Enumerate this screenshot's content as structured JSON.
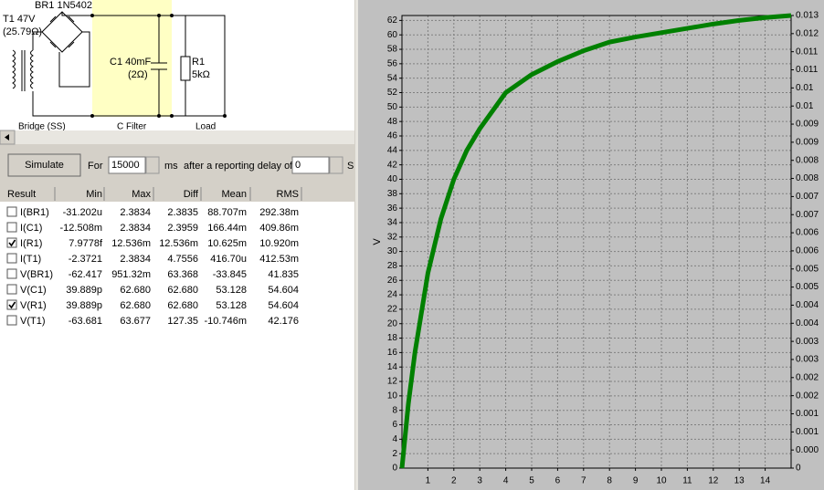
{
  "diagram": {
    "bridge": "BR1 1N5402",
    "transformer": "T1 47V",
    "transformer_res": "(25.79Ω)",
    "capacitor": "C1 40mF",
    "capacitor_res": "(2Ω)",
    "resistor": "R1",
    "resistor_value": "5kΩ",
    "section_labels": [
      "Bridge (SS)",
      "C Filter",
      "Load"
    ]
  },
  "controls": {
    "button": "Simulate",
    "for": "For",
    "duration": "15000",
    "duration_unit": "ms",
    "delay_text": "after a reporting delay of",
    "delay": "0",
    "delay_unit": "S"
  },
  "table": {
    "header": [
      "Result",
      "Min",
      "Max",
      "Diff",
      "Mean",
      "RMS"
    ],
    "rows": [
      {
        "checked": false,
        "cells": [
          "I(BR1)",
          "-31.202u",
          "2.3834",
          "2.3835",
          "88.707m",
          "292.38m"
        ]
      },
      {
        "checked": false,
        "cells": [
          "I(C1)",
          "-12.508m",
          "2.3834",
          "2.3959",
          "166.44m",
          "409.86m"
        ]
      },
      {
        "checked": true,
        "cells": [
          "I(R1)",
          "7.9778f",
          "12.536m",
          "12.536m",
          "10.625m",
          "10.920m"
        ]
      },
      {
        "checked": false,
        "cells": [
          "I(T1)",
          "-2.3721",
          "2.3834",
          "4.7556",
          "416.70u",
          "412.53m"
        ]
      },
      {
        "checked": false,
        "cells": [
          "V(BR1)",
          "-62.417",
          "951.32m",
          "63.368",
          "-33.845",
          "41.835"
        ]
      },
      {
        "checked": false,
        "cells": [
          "V(C1)",
          "39.889p",
          "62.680",
          "62.680",
          "53.128",
          "54.604"
        ]
      },
      {
        "checked": true,
        "cells": [
          "V(R1)",
          "39.889p",
          "62.680",
          "62.680",
          "53.128",
          "54.604"
        ]
      },
      {
        "checked": false,
        "cells": [
          "V(T1)",
          "-63.681",
          "63.677",
          "127.35",
          "-10.746m",
          "42.176"
        ]
      }
    ]
  },
  "chart_data": {
    "type": "line",
    "ylabel": "V",
    "x": [
      0,
      0.25,
      0.5,
      1,
      1.5,
      2,
      2.5,
      3,
      4,
      5,
      6,
      7,
      8,
      9,
      10,
      11,
      12,
      13,
      14,
      15
    ],
    "series": [
      {
        "color": "#008000",
        "values": [
          0,
          9,
          16,
          27,
          34.5,
          40,
          44,
          47,
          52,
          54.5,
          56.3,
          57.8,
          59,
          59.7,
          60.3,
          60.9,
          61.5,
          62,
          62.4,
          62.68
        ]
      }
    ],
    "xlim": [
      0,
      15
    ],
    "xticks": [
      1,
      2,
      3,
      4,
      5,
      6,
      7,
      8,
      9,
      10,
      11,
      12,
      13,
      14
    ],
    "ylim": [
      0,
      62.68
    ],
    "yticks": [
      0,
      2,
      4,
      6,
      8,
      10,
      12,
      14,
      16,
      18,
      20,
      22,
      24,
      26,
      28,
      30,
      32,
      34,
      36,
      38,
      40,
      42,
      44,
      46,
      48,
      50,
      52,
      54,
      56,
      58,
      60,
      62
    ],
    "y2lim": [
      0,
      0.0125
    ],
    "y2ticks": [
      0,
      {
        "value": 0.0005,
        "label": "0.000"
      },
      {
        "value": 0.001,
        "label": "0.001"
      },
      {
        "value": 0.0015,
        "label": "0.001"
      },
      {
        "value": 0.002,
        "label": "0.002"
      },
      {
        "value": 0.0025,
        "label": "0.002"
      },
      {
        "value": 0.003,
        "label": "0.003"
      },
      {
        "value": 0.0035,
        "label": "0.003"
      },
      {
        "value": 0.004,
        "label": "0.004"
      },
      {
        "value": 0.0045,
        "label": "0.004"
      },
      {
        "value": 0.005,
        "label": "0.005"
      },
      {
        "value": 0.0055,
        "label": "0.005"
      },
      {
        "value": 0.006,
        "label": "0.006"
      },
      {
        "value": 0.0065,
        "label": "0.006"
      },
      {
        "value": 0.007,
        "label": "0.007"
      },
      {
        "value": 0.0075,
        "label": "0.007"
      },
      {
        "value": 0.008,
        "label": "0.008"
      },
      {
        "value": 0.0085,
        "label": "0.008"
      },
      {
        "value": 0.009,
        "label": "0.009"
      },
      {
        "value": 0.0095,
        "label": "0.009"
      },
      0.01,
      {
        "value": 0.0105,
        "label": "0.01"
      },
      {
        "value": 0.011,
        "label": "0.011"
      },
      {
        "value": 0.0115,
        "label": "0.011"
      },
      {
        "value": 0.012,
        "label": "0.012"
      },
      {
        "value": 0.0125,
        "label": "0.013"
      }
    ],
    "grid": true
  }
}
